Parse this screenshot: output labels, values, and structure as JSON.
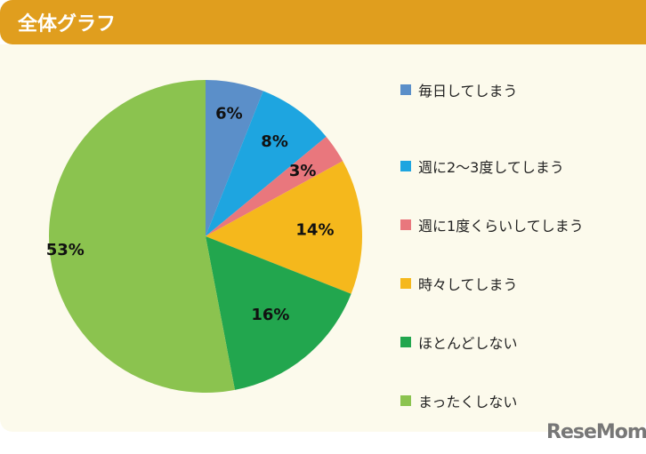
{
  "header": {
    "title": "全体グラフ"
  },
  "logo": "ReseMom",
  "chart_data": {
    "type": "pie",
    "title": "全体グラフ",
    "categories": [
      "毎日してしまう",
      "週に2〜3度してしまう",
      "週に1度くらいしてしまう",
      "時々してしまう",
      "ほとんどしない",
      "まったくしない"
    ],
    "values": [
      6,
      8,
      3,
      14,
      16,
      53
    ],
    "labels": [
      "6%",
      "8%",
      "3%",
      "14%",
      "16%",
      "53%"
    ],
    "colors": [
      "#5b8fc9",
      "#1ea5e0",
      "#e9777d",
      "#f5b81c",
      "#22a64e",
      "#8bc34f"
    ],
    "start": "12 o'clock",
    "direction": "clockwise",
    "legend": "right"
  }
}
